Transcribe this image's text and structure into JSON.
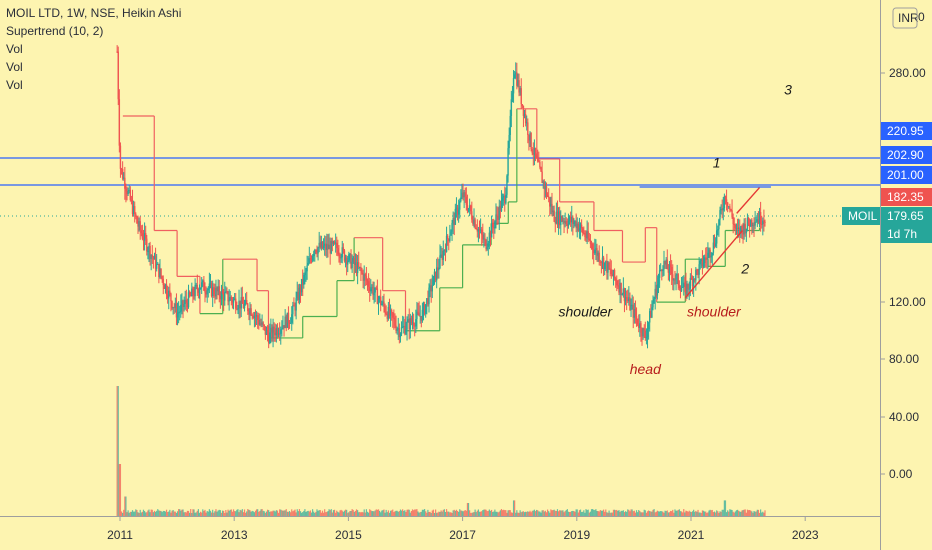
{
  "legend": {
    "title": "MOIL LTD, 1W, NSE, Heikin Ashi",
    "indicators": [
      "Supertrend (10, 2)",
      "Vol",
      "Vol",
      "Vol"
    ]
  },
  "currency_label": "INR",
  "currency_suffix": "0",
  "colors": {
    "background": "#fdf4b0",
    "up": "#26a69a",
    "down": "#ef5350",
    "supertrend_up": "#4caf50",
    "supertrend_down": "#f06060",
    "hline": "#2962ff",
    "trendline": "#e53935",
    "price_tag": "#26a69a",
    "last_tag": "#ef5350",
    "level_tag": "#2962ff"
  },
  "chart_data": {
    "type": "candlestick",
    "title": "MOIL LTD, 1W, NSE, Heikin Ashi",
    "x_axis": {
      "ticks": [
        "2011",
        "2013",
        "2015",
        "2017",
        "2019",
        "2021",
        "2023"
      ]
    },
    "y_axis": {
      "ticks": [
        "280.00",
        "120.00",
        "80.00",
        "40.00",
        "0.00"
      ],
      "range": [
        -40,
        330
      ]
    },
    "price_path": [
      {
        "x": 2010.95,
        "y": 295
      },
      {
        "x": 2011.0,
        "y": 215
      },
      {
        "x": 2011.3,
        "y": 175
      },
      {
        "x": 2011.7,
        "y": 140
      },
      {
        "x": 2012.0,
        "y": 112
      },
      {
        "x": 2012.4,
        "y": 132
      },
      {
        "x": 2012.8,
        "y": 125
      },
      {
        "x": 2013.3,
        "y": 115
      },
      {
        "x": 2013.6,
        "y": 96
      },
      {
        "x": 2014.0,
        "y": 110
      },
      {
        "x": 2014.4,
        "y": 158
      },
      {
        "x": 2014.8,
        "y": 158
      },
      {
        "x": 2015.2,
        "y": 142
      },
      {
        "x": 2015.6,
        "y": 118
      },
      {
        "x": 2015.9,
        "y": 100
      },
      {
        "x": 2016.3,
        "y": 112
      },
      {
        "x": 2016.7,
        "y": 160
      },
      {
        "x": 2017.0,
        "y": 195
      },
      {
        "x": 2017.4,
        "y": 160
      },
      {
        "x": 2017.75,
        "y": 195
      },
      {
        "x": 2017.9,
        "y": 285
      },
      {
        "x": 2018.2,
        "y": 230
      },
      {
        "x": 2018.6,
        "y": 180
      },
      {
        "x": 2019.0,
        "y": 175
      },
      {
        "x": 2019.4,
        "y": 152
      },
      {
        "x": 2019.8,
        "y": 128
      },
      {
        "x": 2020.2,
        "y": 96
      },
      {
        "x": 2020.5,
        "y": 148
      },
      {
        "x": 2020.9,
        "y": 128
      },
      {
        "x": 2021.4,
        "y": 160
      },
      {
        "x": 2021.6,
        "y": 196
      },
      {
        "x": 2021.8,
        "y": 168
      },
      {
        "x": 2022.1,
        "y": 178
      },
      {
        "x": 2022.3,
        "y": 179.65
      }
    ],
    "supertrend": [
      {
        "x": 2011.05,
        "y": 250,
        "dir": "down"
      },
      {
        "x": 2011.6,
        "y": 170,
        "dir": "down"
      },
      {
        "x": 2012.0,
        "y": 138,
        "dir": "down"
      },
      {
        "x": 2012.4,
        "y": 112,
        "dir": "up"
      },
      {
        "x": 2012.8,
        "y": 150,
        "dir": "down"
      },
      {
        "x": 2013.4,
        "y": 128,
        "dir": "down"
      },
      {
        "x": 2013.6,
        "y": 95,
        "dir": "up"
      },
      {
        "x": 2014.2,
        "y": 110,
        "dir": "up"
      },
      {
        "x": 2014.8,
        "y": 135,
        "dir": "up"
      },
      {
        "x": 2015.1,
        "y": 165,
        "dir": "down"
      },
      {
        "x": 2015.6,
        "y": 128,
        "dir": "down"
      },
      {
        "x": 2016.0,
        "y": 100,
        "dir": "up"
      },
      {
        "x": 2016.6,
        "y": 130,
        "dir": "up"
      },
      {
        "x": 2017.0,
        "y": 160,
        "dir": "up"
      },
      {
        "x": 2017.5,
        "y": 175,
        "dir": "up"
      },
      {
        "x": 2017.8,
        "y": 190,
        "dir": "up"
      },
      {
        "x": 2017.95,
        "y": 255,
        "dir": "down"
      },
      {
        "x": 2018.3,
        "y": 220,
        "dir": "down"
      },
      {
        "x": 2018.7,
        "y": 190,
        "dir": "down"
      },
      {
        "x": 2019.3,
        "y": 170,
        "dir": "down"
      },
      {
        "x": 2019.8,
        "y": 148,
        "dir": "down"
      },
      {
        "x": 2020.2,
        "y": 172,
        "dir": "down"
      },
      {
        "x": 2020.4,
        "y": 120,
        "dir": "up"
      },
      {
        "x": 2020.9,
        "y": 150,
        "dir": "up"
      },
      {
        "x": 2021.3,
        "y": 145,
        "dir": "up"
      },
      {
        "x": 2021.6,
        "y": 170,
        "dir": "up"
      },
      {
        "x": 2022.2,
        "y": 172,
        "dir": "up"
      }
    ],
    "volume": [
      {
        "x": 2010.95,
        "v": 1.0
      },
      {
        "x": 2011.0,
        "v": 0.4
      },
      {
        "x": 2011.1,
        "v": 0.15
      },
      {
        "x": 2017.1,
        "v": 0.1
      },
      {
        "x": 2017.9,
        "v": 0.12
      },
      {
        "x": 2021.6,
        "v": 0.12
      }
    ],
    "horizontal_lines": [
      202.9,
      201.0
    ],
    "dotted_line": 179.65,
    "resistance_segment": {
      "x1": 2020.1,
      "x2": 2022.4,
      "y": 201
    },
    "trendlines": [
      {
        "x1": 2020.9,
        "y1": 123,
        "x2": 2021.9,
        "y2": 170
      },
      {
        "x1": 2021.8,
        "y1": 182,
        "x2": 2022.2,
        "y2": 200
      }
    ],
    "price_tags": [
      {
        "value": "220.95",
        "color": "level"
      },
      {
        "value": "202.90",
        "color": "level"
      },
      {
        "value": "201.00",
        "color": "level"
      },
      {
        "value": "182.35",
        "color": "last"
      },
      {
        "value": "179.65",
        "color": "price"
      },
      {
        "value": "1d 7h",
        "color": "price"
      }
    ],
    "symbol_tag": "MOIL",
    "annotations": [
      {
        "text": "shoulder",
        "x": 2019.15,
        "y": 110,
        "color": "#1a1a1a"
      },
      {
        "text": "head",
        "x": 2020.2,
        "y": 70,
        "color": "#b71c1c"
      },
      {
        "text": "shoulder",
        "x": 2021.4,
        "y": 110,
        "color": "#b71c1c"
      },
      {
        "text": "1",
        "x": 2021.45,
        "y": 214,
        "color": "#1a1a1a"
      },
      {
        "text": "2",
        "x": 2021.95,
        "y": 140,
        "color": "#1a1a1a"
      },
      {
        "text": "3",
        "x": 2022.7,
        "y": 265,
        "color": "#1a1a1a"
      }
    ]
  }
}
